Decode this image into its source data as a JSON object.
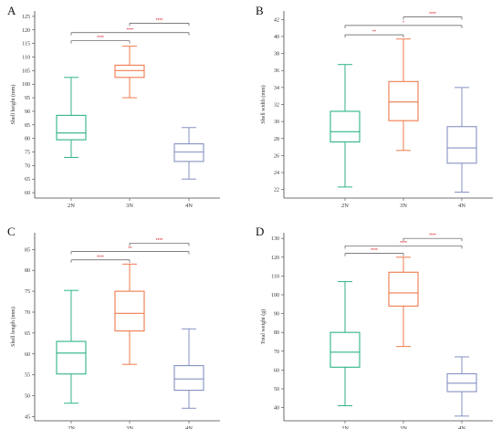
{
  "colors": {
    "2N": "#2fb38a",
    "3N": "#ef7b4d",
    "4N": "#8592c4",
    "axis": "#444444",
    "bracket": "#555555",
    "sig": "#d9232e"
  },
  "chart_data": [
    {
      "type": "box",
      "panel": "A",
      "ylabel": "Shell height (mm)",
      "ylim": [
        58,
        127
      ],
      "yticks": [
        60,
        65,
        70,
        75,
        80,
        85,
        90,
        95,
        100,
        105,
        110,
        115,
        120,
        125
      ],
      "categories": [
        "2N",
        "3N",
        "4N"
      ],
      "series": [
        {
          "category": "2N",
          "min": 73,
          "q1": 79.5,
          "median": 82,
          "q3": 88.5,
          "max": 102.5
        },
        {
          "category": "3N",
          "min": 95,
          "q1": 102.5,
          "median": 105,
          "q3": 107,
          "max": 114
        },
        {
          "category": "4N",
          "min": 65,
          "q1": 71.5,
          "median": 75,
          "q3": 78,
          "max": 84
        }
      ],
      "comparisons": [
        {
          "from": "2N",
          "to": "3N",
          "label": "****",
          "y": 116
        },
        {
          "from": "2N",
          "to": "4N",
          "label": "****",
          "y": 119
        },
        {
          "from": "3N",
          "to": "4N",
          "label": "****",
          "y": 122.5
        }
      ]
    },
    {
      "type": "box",
      "panel": "B",
      "ylabel": "Shell width (mm)",
      "ylim": [
        21,
        43
      ],
      "yticks": [
        22,
        24,
        26,
        28,
        30,
        32,
        34,
        36,
        38,
        40,
        42
      ],
      "categories": [
        "2N",
        "3N",
        "4N"
      ],
      "series": [
        {
          "category": "2N",
          "min": 22.3,
          "q1": 27.6,
          "median": 28.8,
          "q3": 31.2,
          "max": 36.7
        },
        {
          "category": "3N",
          "min": 26.6,
          "q1": 30.1,
          "median": 32.3,
          "q3": 34.7,
          "max": 39.7
        },
        {
          "category": "4N",
          "min": 21.7,
          "q1": 25.1,
          "median": 26.9,
          "q3": 29.4,
          "max": 34.0
        }
      ],
      "comparisons": [
        {
          "from": "2N",
          "to": "3N",
          "label": "**",
          "y": 40.2
        },
        {
          "from": "2N",
          "to": "4N",
          "label": "*",
          "y": 41.3
        },
        {
          "from": "3N",
          "to": "4N",
          "label": "****",
          "y": 42.3
        }
      ]
    },
    {
      "type": "box",
      "panel": "C",
      "ylabel": "Shell length (mm)",
      "ylim": [
        44,
        89
      ],
      "yticks": [
        45,
        50,
        55,
        60,
        65,
        70,
        75,
        80,
        85
      ],
      "categories": [
        "2N",
        "3N",
        "4N"
      ],
      "series": [
        {
          "category": "2N",
          "min": 48.2,
          "q1": 55.2,
          "median": 60.2,
          "q3": 63.0,
          "max": 75.2
        },
        {
          "category": "3N",
          "min": 57.5,
          "q1": 65.5,
          "median": 69.7,
          "q3": 75.0,
          "max": 81.5
        },
        {
          "category": "4N",
          "min": 47.0,
          "q1": 51.3,
          "median": 54.0,
          "q3": 57.2,
          "max": 66.0
        }
      ],
      "comparisons": [
        {
          "from": "2N",
          "to": "3N",
          "label": "****",
          "y": 82.5
        },
        {
          "from": "2N",
          "to": "4N",
          "label": "**",
          "y": 84.5
        },
        {
          "from": "3N",
          "to": "4N",
          "label": "****",
          "y": 86.5
        }
      ]
    },
    {
      "type": "box",
      "panel": "D",
      "ylabel": "Total weight (g)",
      "ylim": [
        33,
        133
      ],
      "yticks": [
        40,
        50,
        60,
        70,
        80,
        90,
        100,
        110,
        120,
        130
      ],
      "categories": [
        "2N",
        "3N",
        "4N"
      ],
      "series": [
        {
          "category": "2N",
          "min": 41,
          "q1": 61.5,
          "median": 69.5,
          "q3": 80,
          "max": 107
        },
        {
          "category": "3N",
          "min": 72.5,
          "q1": 94,
          "median": 101,
          "q3": 112,
          "max": 120
        },
        {
          "category": "4N",
          "min": 35.5,
          "q1": 48.5,
          "median": 53,
          "q3": 58,
          "max": 67
        }
      ],
      "comparisons": [
        {
          "from": "2N",
          "to": "3N",
          "label": "****",
          "y": 122
        },
        {
          "from": "2N",
          "to": "4N",
          "label": "****",
          "y": 126
        },
        {
          "from": "3N",
          "to": "4N",
          "label": "****",
          "y": 130
        }
      ]
    }
  ]
}
